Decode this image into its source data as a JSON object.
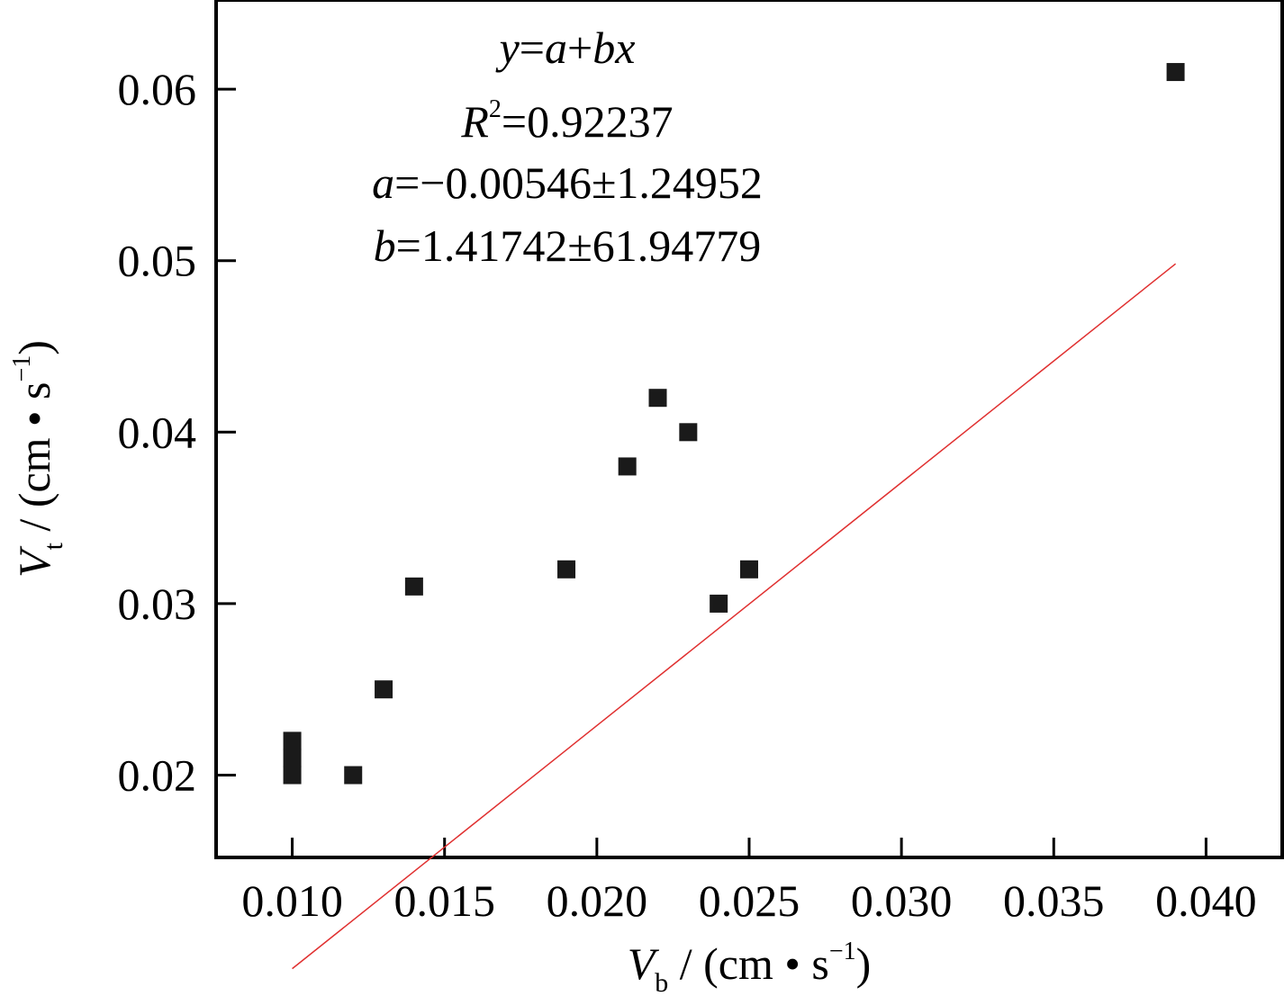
{
  "chart_data": {
    "type": "scatter",
    "title": "",
    "xlabel": {
      "symbol": "V",
      "subscript": "b",
      "unit_open": " / (cm • s",
      "exponent": "−1",
      "unit_close": ")"
    },
    "ylabel": {
      "symbol": "V",
      "subscript": "t",
      "unit_open": " / (cm • s",
      "exponent": "−1",
      "unit_close": ")"
    },
    "xlim": [
      0.0075,
      0.0425
    ],
    "ylim": [
      0.0152,
      0.0652
    ],
    "x_ticks": [
      {
        "value": 0.01,
        "label": "0.010"
      },
      {
        "value": 0.015,
        "label": "0.015"
      },
      {
        "value": 0.02,
        "label": "0.020"
      },
      {
        "value": 0.025,
        "label": "0.025"
      },
      {
        "value": 0.03,
        "label": "0.030"
      },
      {
        "value": 0.035,
        "label": "0.035"
      },
      {
        "value": 0.04,
        "label": "0.040"
      }
    ],
    "y_ticks": [
      {
        "value": 0.02,
        "label": "0.02"
      },
      {
        "value": 0.03,
        "label": "0.03"
      },
      {
        "value": 0.04,
        "label": "0.04"
      },
      {
        "value": 0.05,
        "label": "0.05"
      },
      {
        "value": 0.06,
        "label": "0.06"
      }
    ],
    "series": [
      {
        "marker": "square",
        "color": "#1a1a1a",
        "points": [
          {
            "x": 0.01,
            "y": 0.02
          },
          {
            "x": 0.01,
            "y": 0.021
          },
          {
            "x": 0.01,
            "y": 0.022
          },
          {
            "x": 0.012,
            "y": 0.02
          },
          {
            "x": 0.013,
            "y": 0.025
          },
          {
            "x": 0.014,
            "y": 0.031
          },
          {
            "x": 0.019,
            "y": 0.032
          },
          {
            "x": 0.021,
            "y": 0.038
          },
          {
            "x": 0.022,
            "y": 0.042
          },
          {
            "x": 0.023,
            "y": 0.04
          },
          {
            "x": 0.024,
            "y": 0.03
          },
          {
            "x": 0.025,
            "y": 0.032
          },
          {
            "x": 0.039,
            "y": 0.061
          }
        ]
      }
    ],
    "fit_line": {
      "color": "#e03030",
      "x_start": 0.01,
      "x_end": 0.039,
      "intercept": -0.00546,
      "slope": 1.41742
    },
    "annotation": {
      "equation": {
        "y": "y",
        "eq": "=",
        "a": "a",
        "plus": "+",
        "bx": "bx"
      },
      "r2": {
        "symbol": "R",
        "exponent": "2",
        "value": "=0.92237"
      },
      "a": {
        "symbol": "a",
        "value": "=−0.00546±1.24952"
      },
      "b": {
        "symbol": "b",
        "value": "=1.41742±61.94779"
      }
    },
    "grid": false,
    "legend": "none"
  }
}
